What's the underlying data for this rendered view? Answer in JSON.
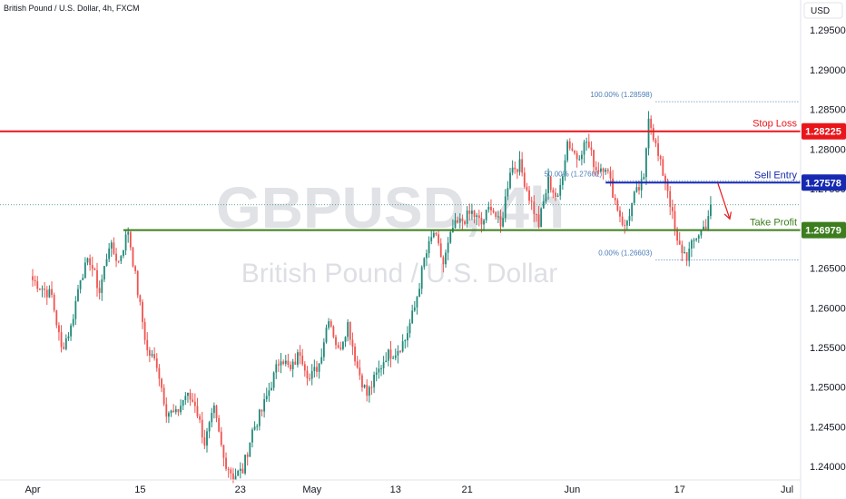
{
  "header": {
    "symbol_title": "British Pound / U.S. Dollar, 4h, FXCM",
    "currency": "USD"
  },
  "watermark": {
    "ticker": "GBPUSD, 4h",
    "name": "British Pound / U.S. Dollar"
  },
  "colors": {
    "stop_loss": "#e8161b",
    "sell_entry": "#1629b0",
    "take_profit": "#3c7d1e",
    "candle_up": "#21897a",
    "candle_down": "#ef5350",
    "fib": "#4a7cb8",
    "arrow": "#e8161b"
  },
  "chart_data": {
    "type": "candlestick",
    "title": "British Pound / U.S. Dollar, 4h, FXCM",
    "ylim": [
      1.2383,
      1.2988
    ],
    "y_ticks": [
      1.295,
      1.29,
      1.285,
      1.28,
      1.275,
      1.27,
      1.265,
      1.26,
      1.255,
      1.25,
      1.245,
      1.24
    ],
    "y_tick_labels": [
      "1.29500",
      "1.29000",
      "1.28500",
      "1.28000",
      "1.27500",
      "1.27000",
      "1.26500",
      "1.26000",
      "1.25500",
      "1.25000",
      "1.24500",
      "1.24000"
    ],
    "x_labels": [
      {
        "label": "Apr",
        "bar": 0
      },
      {
        "label": "15",
        "bar": 45
      },
      {
        "label": "23",
        "bar": 87
      },
      {
        "label": "May",
        "bar": 117
      },
      {
        "label": "13",
        "bar": 152
      },
      {
        "label": "21",
        "bar": 182
      },
      {
        "label": "Jun",
        "bar": 226
      },
      {
        "label": "17",
        "bar": 271
      },
      {
        "label": "Jul",
        "bar": 316
      }
    ],
    "close_path": [
      [
        0,
        1.2635
      ],
      [
        4,
        1.2625
      ],
      [
        8,
        1.2615
      ],
      [
        12,
        1.2548
      ],
      [
        16,
        1.2575
      ],
      [
        20,
        1.264
      ],
      [
        24,
        1.266
      ],
      [
        28,
        1.262
      ],
      [
        32,
        1.268
      ],
      [
        36,
        1.2658
      ],
      [
        40,
        1.2698
      ],
      [
        44,
        1.262
      ],
      [
        48,
        1.2545
      ],
      [
        52,
        1.253
      ],
      [
        56,
        1.247
      ],
      [
        60,
        1.2465
      ],
      [
        64,
        1.249
      ],
      [
        68,
        1.248
      ],
      [
        72,
        1.243
      ],
      [
        76,
        1.247
      ],
      [
        80,
        1.241
      ],
      [
        84,
        1.2388
      ],
      [
        88,
        1.2395
      ],
      [
        92,
        1.2445
      ],
      [
        96,
        1.247
      ],
      [
        100,
        1.2505
      ],
      [
        104,
        1.254
      ],
      [
        108,
        1.252
      ],
      [
        112,
        1.2545
      ],
      [
        116,
        1.251
      ],
      [
        120,
        1.253
      ],
      [
        124,
        1.259
      ],
      [
        128,
        1.2545
      ],
      [
        132,
        1.258
      ],
      [
        136,
        1.2525
      ],
      [
        140,
        1.249
      ],
      [
        144,
        1.2515
      ],
      [
        148,
        1.254
      ],
      [
        152,
        1.2545
      ],
      [
        156,
        1.256
      ],
      [
        160,
        1.26
      ],
      [
        164,
        1.266
      ],
      [
        168,
        1.2695
      ],
      [
        172,
        1.2655
      ],
      [
        176,
        1.27
      ],
      [
        180,
        1.271
      ],
      [
        184,
        1.272
      ],
      [
        188,
        1.2705
      ],
      [
        192,
        1.273
      ],
      [
        196,
        1.27
      ],
      [
        200,
        1.2775
      ],
      [
        204,
        1.278
      ],
      [
        208,
        1.274
      ],
      [
        212,
        1.2705
      ],
      [
        216,
        1.276
      ],
      [
        220,
        1.2735
      ],
      [
        224,
        1.281
      ],
      [
        228,
        1.279
      ],
      [
        232,
        1.281
      ],
      [
        236,
        1.2775
      ],
      [
        240,
        1.278
      ],
      [
        244,
        1.2735
      ],
      [
        248,
        1.27
      ],
      [
        252,
        1.274
      ],
      [
        256,
        1.276
      ],
      [
        258,
        1.2845
      ],
      [
        262,
        1.279
      ],
      [
        266,
        1.275
      ],
      [
        270,
        1.268
      ],
      [
        274,
        1.2665
      ],
      [
        278,
        1.269
      ],
      [
        282,
        1.2705
      ],
      [
        284,
        1.273
      ]
    ],
    "levels": [
      {
        "label": "Stop Loss",
        "value": 1.28225,
        "badge": "1.28225",
        "color": "#e8161b",
        "from_bar": -20
      },
      {
        "label": "Sell Entry",
        "value": 1.27578,
        "badge": "1.27578",
        "color": "#1629b0",
        "from_bar": 240
      },
      {
        "label": "Take Profit",
        "value": 1.26979,
        "badge": "1.26979",
        "color": "#3c7d1e",
        "from_bar": 38
      }
    ],
    "fib": [
      {
        "label": "100.00% (1.28598)",
        "value": 1.28598,
        "from_bar": 261
      },
      {
        "label": "50.00% (1.27601)",
        "value": 1.27601,
        "from_bar": 240
      },
      {
        "label": "0.00% (1.26603)",
        "value": 1.26603,
        "from_bar": 261
      }
    ],
    "current_price_line": 1.273,
    "arrow": {
      "from": [
        287,
        1.2757
      ],
      "to": [
        292,
        1.2712
      ]
    }
  }
}
